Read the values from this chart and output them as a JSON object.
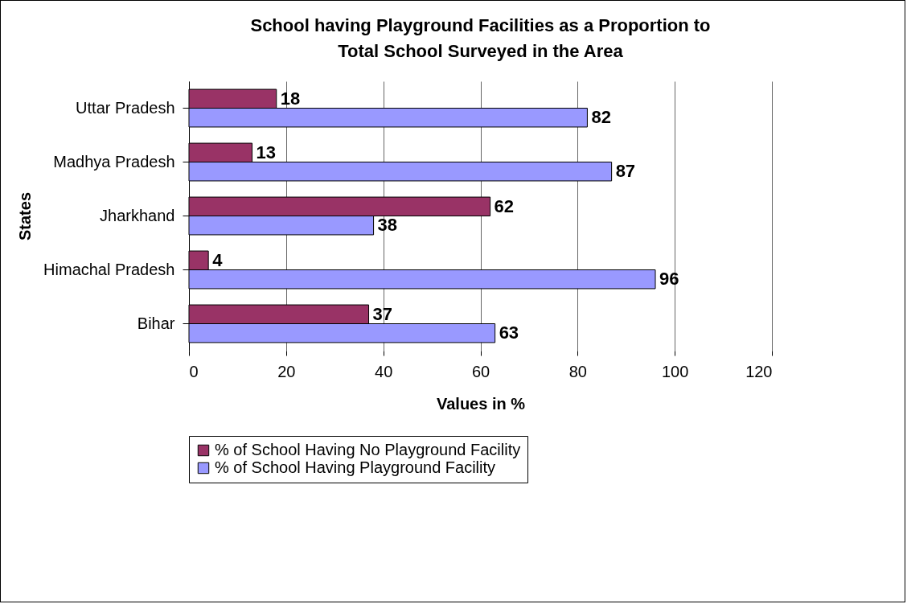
{
  "chart_data": {
    "type": "bar",
    "orientation": "horizontal",
    "title": [
      "School having Playground Facilities as a Proportion to",
      "Total School Surveyed in the Area"
    ],
    "xlabel": "Values in %",
    "ylabel": "States",
    "categories": [
      "Uttar Pradesh",
      "Madhya Pradesh",
      "Jharkhand",
      "Himachal Pradesh",
      "Bihar"
    ],
    "series": [
      {
        "name": "% of School Having No Playground Facility",
        "color": "#993366",
        "values": [
          18,
          13,
          62,
          4,
          37
        ]
      },
      {
        "name": "% of School Having Playground Facility",
        "color": "#9999ff",
        "values": [
          82,
          87,
          38,
          96,
          63
        ]
      }
    ],
    "xlim": [
      0,
      120
    ],
    "xticks": [
      0,
      20,
      40,
      60,
      80,
      100,
      120
    ],
    "grid": "x",
    "legend": "bottom",
    "data_labels": true
  }
}
